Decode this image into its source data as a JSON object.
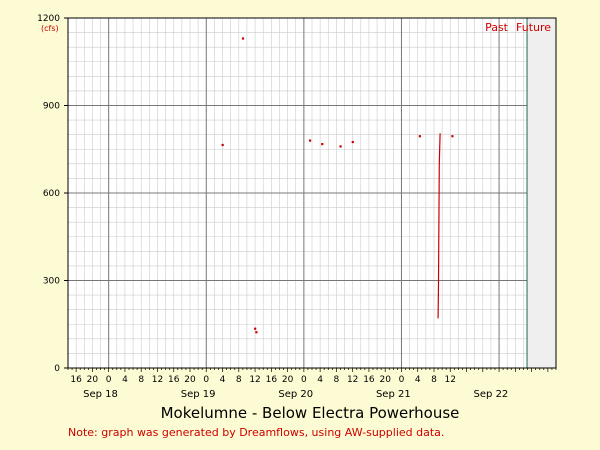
{
  "chart_data": {
    "type": "scatter",
    "title": "Mokelumne - Below Electra Powerhouse",
    "note": "Note: graph was generated by Dreamflows, using AW-supplied data.",
    "ylabel": "(cfs)",
    "ylim": [
      0,
      1200
    ],
    "y_ticks": [
      0,
      300,
      600,
      900,
      1200
    ],
    "xlim_hours_since_sep18_00": [
      -10,
      110
    ],
    "hour_tick_labels": [
      "16",
      "20",
      "0",
      "4",
      "8",
      "12",
      "16",
      "20",
      "0",
      "4",
      "8",
      "12",
      "16",
      "20",
      "0",
      "4",
      "8",
      "12",
      "16",
      "20",
      "0",
      "4",
      "8",
      "12"
    ],
    "day_labels": [
      "Sep 18",
      "Sep 19",
      "Sep 20",
      "Sep 21",
      "Sep 22"
    ],
    "now_marker": {
      "date": "Sep 22",
      "hour": 7,
      "past_label": "Past",
      "future_label": "Future",
      "color": "#1f6b4a"
    },
    "grid": true,
    "point_color": "#cc0000",
    "series": [
      {
        "points": [
          {
            "date": "Sep 19",
            "hour": 4,
            "value": 765
          },
          {
            "date": "Sep 19",
            "hour": 9,
            "value": 1130
          },
          {
            "date": "Sep 19",
            "hour": 12,
            "value": 135
          },
          {
            "date": "Sep 19",
            "hour": 12.3,
            "value": 123
          },
          {
            "date": "Sep 20",
            "hour": 1.5,
            "value": 780
          },
          {
            "date": "Sep 20",
            "hour": 4.5,
            "value": 768
          },
          {
            "date": "Sep 20",
            "hour": 9,
            "value": 760
          },
          {
            "date": "Sep 20",
            "hour": 12,
            "value": 775
          },
          {
            "date": "Sep 21",
            "hour": 4.5,
            "value": 795
          },
          {
            "date": "Sep 21",
            "hour": 12.5,
            "value": 795
          }
        ],
        "lines": [
          [
            {
              "date": "Sep 21",
              "hour": 9,
              "value": 170
            },
            {
              "date": "Sep 21",
              "hour": 9.1,
              "value": 280
            },
            {
              "date": "Sep 21",
              "hour": 9.2,
              "value": 490
            },
            {
              "date": "Sep 21",
              "hour": 9.3,
              "value": 700
            },
            {
              "date": "Sep 21",
              "hour": 9.5,
              "value": 805
            }
          ]
        ]
      }
    ]
  }
}
